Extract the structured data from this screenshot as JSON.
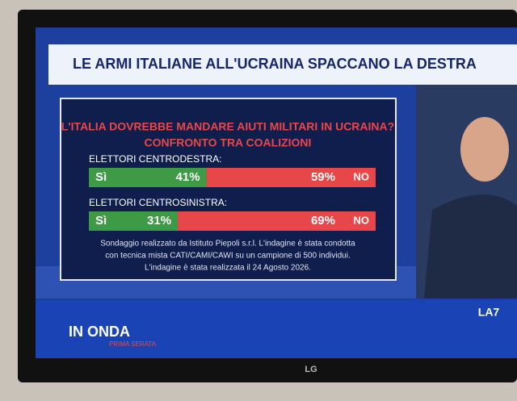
{
  "headline": "LE ARMI ITALIANE ALL'UCRAINA SPACCANO LA DESTRA",
  "chart_data": {
    "type": "stacked-bar",
    "title": "L'ITALIA DOVREBBE MANDARE AIUTI MILITARI IN UCRAINA?",
    "subtitle": "CONFRONTO TRA COALIZIONI",
    "categories": [
      "ELETTORI CENTRODESTRA:",
      "ELETTORI CENTROSINISTRA:"
    ],
    "xlim": [
      0,
      100
    ],
    "series": [
      {
        "name": "Sì",
        "color": "#3f9a45",
        "values": [
          41,
          31
        ],
        "value_labels": [
          "41%",
          "31%"
        ]
      },
      {
        "name": "NO",
        "color": "#e8474a",
        "values": [
          59,
          69
        ],
        "value_labels": [
          "59%",
          "69%"
        ]
      }
    ],
    "notes": [
      "Sondaggio realizzato da Istituto Piepoli s.r.l. L'indagine è stata condotta",
      "con tecnica mista CATI/CAMI/CAWI su un campione di 500 individui.",
      "L'indagine è stata realizzata il 24 Agosto 2026."
    ]
  },
  "program": {
    "name": "IN ONDA",
    "subtitle": "PRIMA SERATA"
  },
  "channel": "LA7",
  "brand": "LG"
}
